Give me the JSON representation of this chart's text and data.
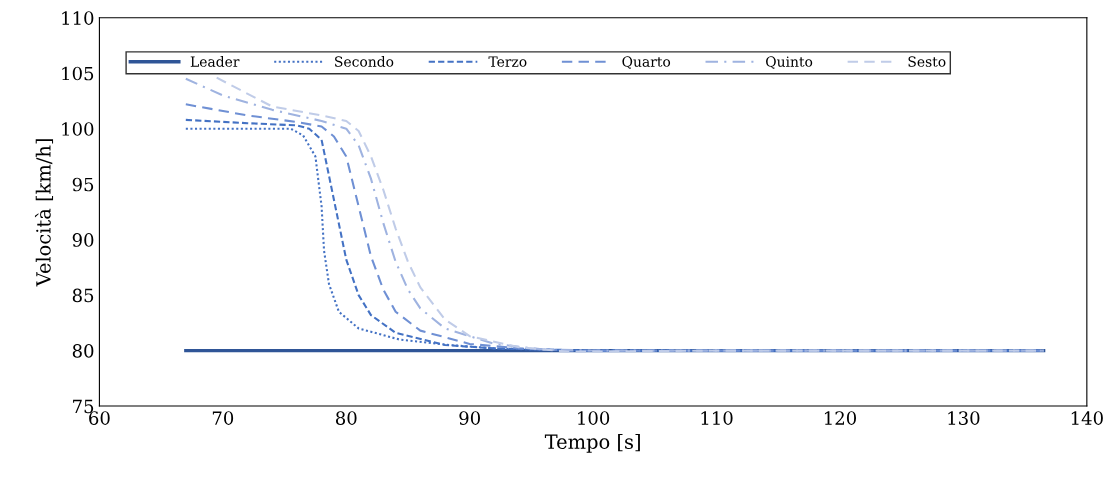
{
  "chart_data": {
    "type": "line",
    "xlabel": "Tempo [s]",
    "ylabel": "Velocità [km/h]",
    "xlim": [
      60,
      140
    ],
    "xticks": [
      60,
      70,
      80,
      90,
      100,
      110,
      120,
      130,
      140
    ],
    "ylim": [
      75,
      110
    ],
    "yticks": [
      75,
      80,
      85,
      90,
      95,
      100,
      105,
      110
    ],
    "grid": false,
    "legend": "top",
    "marker": "none",
    "series": [
      {
        "name": "Leader",
        "color": "#2f5597",
        "line_style": "solid",
        "x": [
          67,
          136.5
        ],
        "values": [
          80,
          80
        ]
      },
      {
        "name": "Secondo",
        "color": "#4472c4",
        "line_style": "dotted",
        "x": [
          67,
          72,
          75.5,
          76.5,
          77.5,
          78,
          78.2,
          78.6,
          79.4,
          81,
          84.3,
          88.4,
          92,
          95,
          100,
          136.5
        ],
        "values": [
          100,
          100,
          100,
          99.4,
          97.5,
          93,
          89,
          86,
          83.5,
          82,
          81,
          80.5,
          80.2,
          80.1,
          80,
          80
        ]
      },
      {
        "name": "Terzo",
        "color": "#4472c4",
        "line_style": "dashed",
        "x": [
          67,
          72,
          76,
          77,
          78,
          79,
          80,
          81,
          82,
          84,
          88,
          92,
          96,
          100,
          136.5
        ],
        "values": [
          100.8,
          100.5,
          100.3,
          100,
          99,
          93.6,
          88.2,
          85,
          83.2,
          81.6,
          80.5,
          80.2,
          80.1,
          80,
          80
        ]
      },
      {
        "name": "Quarto",
        "color": "#6f90d4",
        "line_style": "longdash",
        "x": [
          67,
          72,
          76,
          78,
          79,
          80,
          81,
          82,
          83,
          84,
          86,
          90,
          94,
          98,
          136.5
        ],
        "values": [
          102.2,
          101.2,
          100.6,
          100.2,
          99.3,
          97.5,
          93,
          88.5,
          85.5,
          83.5,
          81.8,
          80.6,
          80.2,
          80,
          80
        ]
      },
      {
        "name": "Quinto",
        "color": "#9fb3e0",
        "line_style": "dashdot",
        "x": [
          67,
          70,
          74,
          78,
          80,
          81,
          82,
          83,
          84,
          85,
          86,
          88,
          92,
          96,
          100,
          136.5
        ],
        "values": [
          104.5,
          103,
          101.7,
          100.7,
          100,
          98.5,
          95.5,
          91.5,
          88,
          85.5,
          83.8,
          82,
          80.6,
          80.1,
          80,
          80
        ]
      },
      {
        "name": "Sesto",
        "color": "#c0cce8",
        "line_style": "longdash",
        "x": [
          69.5,
          74,
          78,
          80,
          81,
          82,
          83,
          84,
          85,
          86,
          88,
          90,
          94,
          98,
          110,
          136.5
        ],
        "values": [
          104.6,
          102,
          101.2,
          100.7,
          99.8,
          97.5,
          94.5,
          91,
          88,
          85.7,
          82.8,
          81.3,
          80.3,
          79.9,
          80,
          80
        ]
      }
    ]
  }
}
